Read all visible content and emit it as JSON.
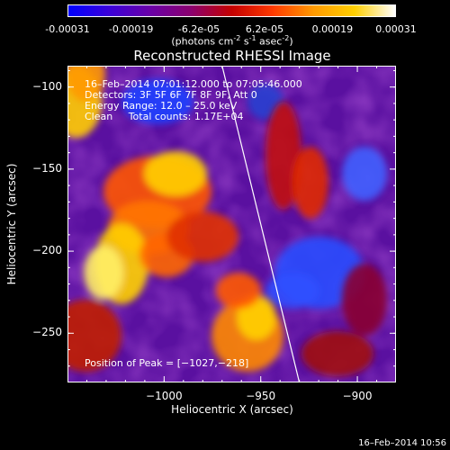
{
  "colorbar": {
    "ticks": [
      "-0.00031",
      "-0.00019",
      "-6.2e-05",
      "6.2e-05",
      "0.00019",
      "0.00031"
    ],
    "tick_values": [
      -0.00031,
      -0.00019,
      -6.2e-05,
      6.2e-05,
      0.00019,
      0.00031
    ],
    "range": [
      -0.00031,
      0.00031
    ],
    "units_text": "(photons cm",
    "units_exp1": "-2",
    "units_mid": " s",
    "units_exp2": "-1",
    "units_mid2": " asec",
    "units_exp3": "-2",
    "units_end": ")",
    "colors": [
      "#0000ff",
      "#3b00d9",
      "#6a00a8",
      "#8b006f",
      "#c40000",
      "#ff3a00",
      "#ff9a00",
      "#ffd000",
      "#ffffff"
    ]
  },
  "chart_data": {
    "type": "heatmap",
    "title": "Reconstructed RHESSI Image",
    "xlabel": "Heliocentric X (arcsec)",
    "ylabel": "Heliocentric Y (arcsec)",
    "xlim": [
      -1050,
      -880
    ],
    "ylim": [
      -280,
      -87
    ],
    "xticks": [
      -1000,
      -950,
      -900
    ],
    "xtick_labels": [
      "−1000",
      "−950",
      "−900"
    ],
    "yticks": [
      -100,
      -150,
      -200,
      -250
    ],
    "ytick_labels": [
      "−100",
      "−150",
      "−200",
      "−250"
    ],
    "limb_line": {
      "x": [
        -970,
        -930
      ],
      "y": [
        -87,
        -280
      ]
    },
    "peak": {
      "x": -1027,
      "y": -218
    },
    "annotations": {
      "time": "16–Feb–2014 07:01:12.000 to 07:05:46.000",
      "detectors": "Detectors: 3F 5F 6F 7F 8F 9F, Att 0",
      "energy": "Energy Range: 12.0 – 25.0 keV",
      "method": "Clean     Total counts: 1.17E+04",
      "peak_text": "Position of Peak = [−1027,−218]"
    }
  },
  "timestamp": "16–Feb–2014 10:56"
}
